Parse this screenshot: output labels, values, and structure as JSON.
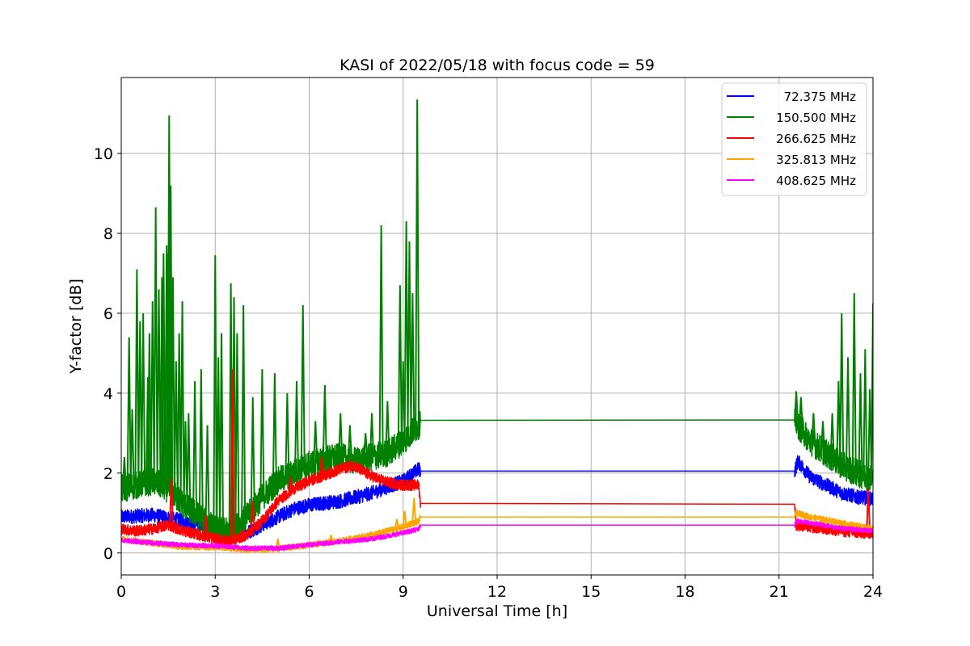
{
  "chart_data": {
    "type": "line",
    "title": "KASI of 2022/05/18 with focus code = 59",
    "xlabel": "Universal Time [h]",
    "ylabel": "Y-factor [dB]",
    "xlim": [
      0,
      24
    ],
    "ylim": [
      -0.55,
      11.9
    ],
    "xticks": [
      0,
      3,
      6,
      9,
      12,
      15,
      18,
      21,
      24
    ],
    "yticks": [
      0,
      2,
      4,
      6,
      8,
      10
    ],
    "grid": true,
    "legend_position": "top-right",
    "series": [
      {
        "name": "72.375 MHz",
        "color": "#0000ff",
        "band": 0.18,
        "points": [
          [
            0,
            0.9
          ],
          [
            1,
            0.95
          ],
          [
            2,
            0.8
          ],
          [
            2.5,
            0.7
          ],
          [
            3,
            0.55
          ],
          [
            3.5,
            0.4
          ],
          [
            4,
            0.5
          ],
          [
            4.5,
            0.7
          ],
          [
            5,
            0.9
          ],
          [
            5.5,
            1.1
          ],
          [
            6,
            1.2
          ],
          [
            7,
            1.3
          ],
          [
            8,
            1.5
          ],
          [
            9,
            1.8
          ],
          [
            9.5,
            2.1
          ],
          [
            9.55,
            2.05
          ],
          [
            21.5,
            2.05
          ],
          [
            21.6,
            2.3
          ],
          [
            22,
            1.9
          ],
          [
            22.5,
            1.7
          ],
          [
            23,
            1.5
          ],
          [
            23.5,
            1.4
          ],
          [
            24,
            1.35
          ]
        ]
      },
      {
        "name": "150.500 MHz",
        "color": "#008000",
        "band": 0.35,
        "points": [
          [
            0,
            1.6
          ],
          [
            1,
            1.8
          ],
          [
            1.5,
            1.6
          ],
          [
            2,
            1.2
          ],
          [
            2.5,
            0.9
          ],
          [
            3,
            0.6
          ],
          [
            3.5,
            0.5
          ],
          [
            4,
            0.9
          ],
          [
            4.5,
            1.4
          ],
          [
            5,
            1.8
          ],
          [
            5.5,
            2.0
          ],
          [
            6,
            2.2
          ],
          [
            6.5,
            2.35
          ],
          [
            7,
            2.4
          ],
          [
            7.5,
            2.3
          ],
          [
            8,
            2.4
          ],
          [
            8.5,
            2.5
          ],
          [
            9,
            2.8
          ],
          [
            9.5,
            3.2
          ],
          [
            9.55,
            3.32
          ],
          [
            21.5,
            3.33
          ],
          [
            21.6,
            3.2
          ],
          [
            22,
            2.8
          ],
          [
            22.5,
            2.5
          ],
          [
            23,
            2.2
          ],
          [
            23.5,
            2.0
          ],
          [
            24,
            1.85
          ]
        ],
        "spikes": [
          [
            0.1,
            2.4
          ],
          [
            0.25,
            5.4
          ],
          [
            0.35,
            3.6
          ],
          [
            0.5,
            7.1
          ],
          [
            0.6,
            5.8
          ],
          [
            0.7,
            6.0
          ],
          [
            0.85,
            4.4
          ],
          [
            0.9,
            5.5
          ],
          [
            1.0,
            6.3
          ],
          [
            1.1,
            8.65
          ],
          [
            1.2,
            6.6
          ],
          [
            1.3,
            6.9
          ],
          [
            1.35,
            7.5
          ],
          [
            1.45,
            7.7
          ],
          [
            1.5,
            7.5
          ],
          [
            1.53,
            10.95
          ],
          [
            1.58,
            9.2
          ],
          [
            1.65,
            6.9
          ],
          [
            1.75,
            4.8
          ],
          [
            1.85,
            5.5
          ],
          [
            1.95,
            6.3
          ],
          [
            2.05,
            3.3
          ],
          [
            2.15,
            3.5
          ],
          [
            2.35,
            4.3
          ],
          [
            2.55,
            4.6
          ],
          [
            2.75,
            3.2
          ],
          [
            3.0,
            7.45
          ],
          [
            3.1,
            4.9
          ],
          [
            3.2,
            5.5
          ],
          [
            3.5,
            6.75
          ],
          [
            3.6,
            6.4
          ],
          [
            3.7,
            5.5
          ],
          [
            3.9,
            6.2
          ],
          [
            4.2,
            3.9
          ],
          [
            4.5,
            4.6
          ],
          [
            4.9,
            4.5
          ],
          [
            5.3,
            4.0
          ],
          [
            5.6,
            4.3
          ],
          [
            5.8,
            6.2
          ],
          [
            6.2,
            3.3
          ],
          [
            6.5,
            4.2
          ],
          [
            7.0,
            3.5
          ],
          [
            7.3,
            3.2
          ],
          [
            7.8,
            3.0
          ],
          [
            8.0,
            3.5
          ],
          [
            8.3,
            8.2
          ],
          [
            8.5,
            3.8
          ],
          [
            8.9,
            6.7
          ],
          [
            9.0,
            4.8
          ],
          [
            9.1,
            8.3
          ],
          [
            9.2,
            7.8
          ],
          [
            9.3,
            6.5
          ],
          [
            9.45,
            11.35
          ],
          [
            21.55,
            4.05
          ],
          [
            21.7,
            3.9
          ],
          [
            22.1,
            3.5
          ],
          [
            22.4,
            3.3
          ],
          [
            22.7,
            3.5
          ],
          [
            22.9,
            4.3
          ],
          [
            23.0,
            6.0
          ],
          [
            23.2,
            4.9
          ],
          [
            23.4,
            6.5
          ],
          [
            23.6,
            4.5
          ],
          [
            23.75,
            5.1
          ],
          [
            23.9,
            4.1
          ],
          [
            24.0,
            6.25
          ]
        ]
      },
      {
        "name": "266.625 MHz",
        "color": "#ff0000",
        "band": 0.14,
        "points": [
          [
            0,
            0.6
          ],
          [
            0.5,
            0.55
          ],
          [
            1,
            0.6
          ],
          [
            1.5,
            0.7
          ],
          [
            2,
            0.55
          ],
          [
            2.5,
            0.45
          ],
          [
            3,
            0.35
          ],
          [
            3.5,
            0.3
          ],
          [
            4,
            0.45
          ],
          [
            4.5,
            0.8
          ],
          [
            5,
            1.3
          ],
          [
            5.5,
            1.6
          ],
          [
            6,
            1.8
          ],
          [
            6.5,
            1.95
          ],
          [
            7,
            2.1
          ],
          [
            7.4,
            2.2
          ],
          [
            7.8,
            2.0
          ],
          [
            8.2,
            1.85
          ],
          [
            8.6,
            1.75
          ],
          [
            9,
            1.7
          ],
          [
            9.5,
            1.7
          ],
          [
            9.55,
            1.24
          ],
          [
            21.5,
            1.22
          ],
          [
            21.55,
            0.7
          ],
          [
            22,
            0.65
          ],
          [
            22.5,
            0.6
          ],
          [
            23,
            0.55
          ],
          [
            23.5,
            0.5
          ],
          [
            24,
            0.5
          ]
        ],
        "spikes": [
          [
            1.6,
            1.85
          ],
          [
            2.7,
            0.95
          ],
          [
            3.55,
            4.6
          ],
          [
            4.2,
            1.3
          ],
          [
            5.4,
            1.9
          ],
          [
            6.4,
            2.4
          ],
          [
            23.85,
            1.6
          ]
        ]
      },
      {
        "name": "325.813 MHz",
        "color": "#ffa500",
        "band": 0.08,
        "points": [
          [
            0,
            0.35
          ],
          [
            1,
            0.25
          ],
          [
            2,
            0.15
          ],
          [
            3,
            0.15
          ],
          [
            4,
            0.08
          ],
          [
            5,
            0.1
          ],
          [
            6,
            0.2
          ],
          [
            7,
            0.3
          ],
          [
            8,
            0.45
          ],
          [
            9,
            0.65
          ],
          [
            9.5,
            0.8
          ],
          [
            9.55,
            0.9
          ],
          [
            21.5,
            0.9
          ],
          [
            21.55,
            1.0
          ],
          [
            22,
            0.9
          ],
          [
            23,
            0.75
          ],
          [
            24,
            0.6
          ]
        ],
        "spikes": [
          [
            5.0,
            0.35
          ],
          [
            6.7,
            0.45
          ],
          [
            8.8,
            0.85
          ],
          [
            9.05,
            1.05
          ],
          [
            9.35,
            1.38
          ]
        ]
      },
      {
        "name": "408.625 MHz",
        "color": "#ff00ff",
        "band": 0.06,
        "points": [
          [
            0,
            0.32
          ],
          [
            1,
            0.25
          ],
          [
            2,
            0.2
          ],
          [
            3,
            0.18
          ],
          [
            4,
            0.12
          ],
          [
            5,
            0.12
          ],
          [
            6,
            0.2
          ],
          [
            7,
            0.28
          ],
          [
            8,
            0.35
          ],
          [
            9,
            0.5
          ],
          [
            9.5,
            0.6
          ],
          [
            9.55,
            0.7
          ],
          [
            21.5,
            0.7
          ],
          [
            21.55,
            0.8
          ],
          [
            22,
            0.75
          ],
          [
            23,
            0.62
          ],
          [
            24,
            0.55
          ]
        ]
      }
    ]
  }
}
